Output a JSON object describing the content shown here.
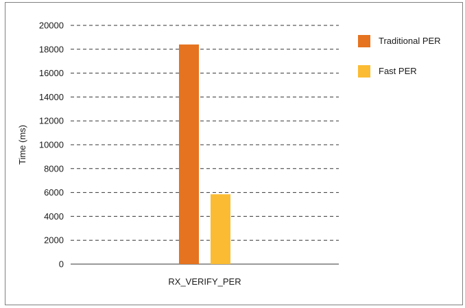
{
  "chart_data": {
    "type": "bar",
    "categories": [
      "RX_VERIFY_PER"
    ],
    "series": [
      {
        "name": "Traditional PER",
        "values": [
          18400
        ],
        "color": "#e5731f"
      },
      {
        "name": "Fast PER",
        "values": [
          5850
        ],
        "color": "#fbbc33"
      }
    ],
    "title": "",
    "xlabel": "",
    "ylabel": "Time (ms)",
    "ylim": [
      0,
      20000
    ],
    "yticks": [
      0,
      2000,
      4000,
      6000,
      8000,
      10000,
      12000,
      14000,
      16000,
      18000,
      20000
    ],
    "grid": true,
    "legend_position": "top-right"
  }
}
